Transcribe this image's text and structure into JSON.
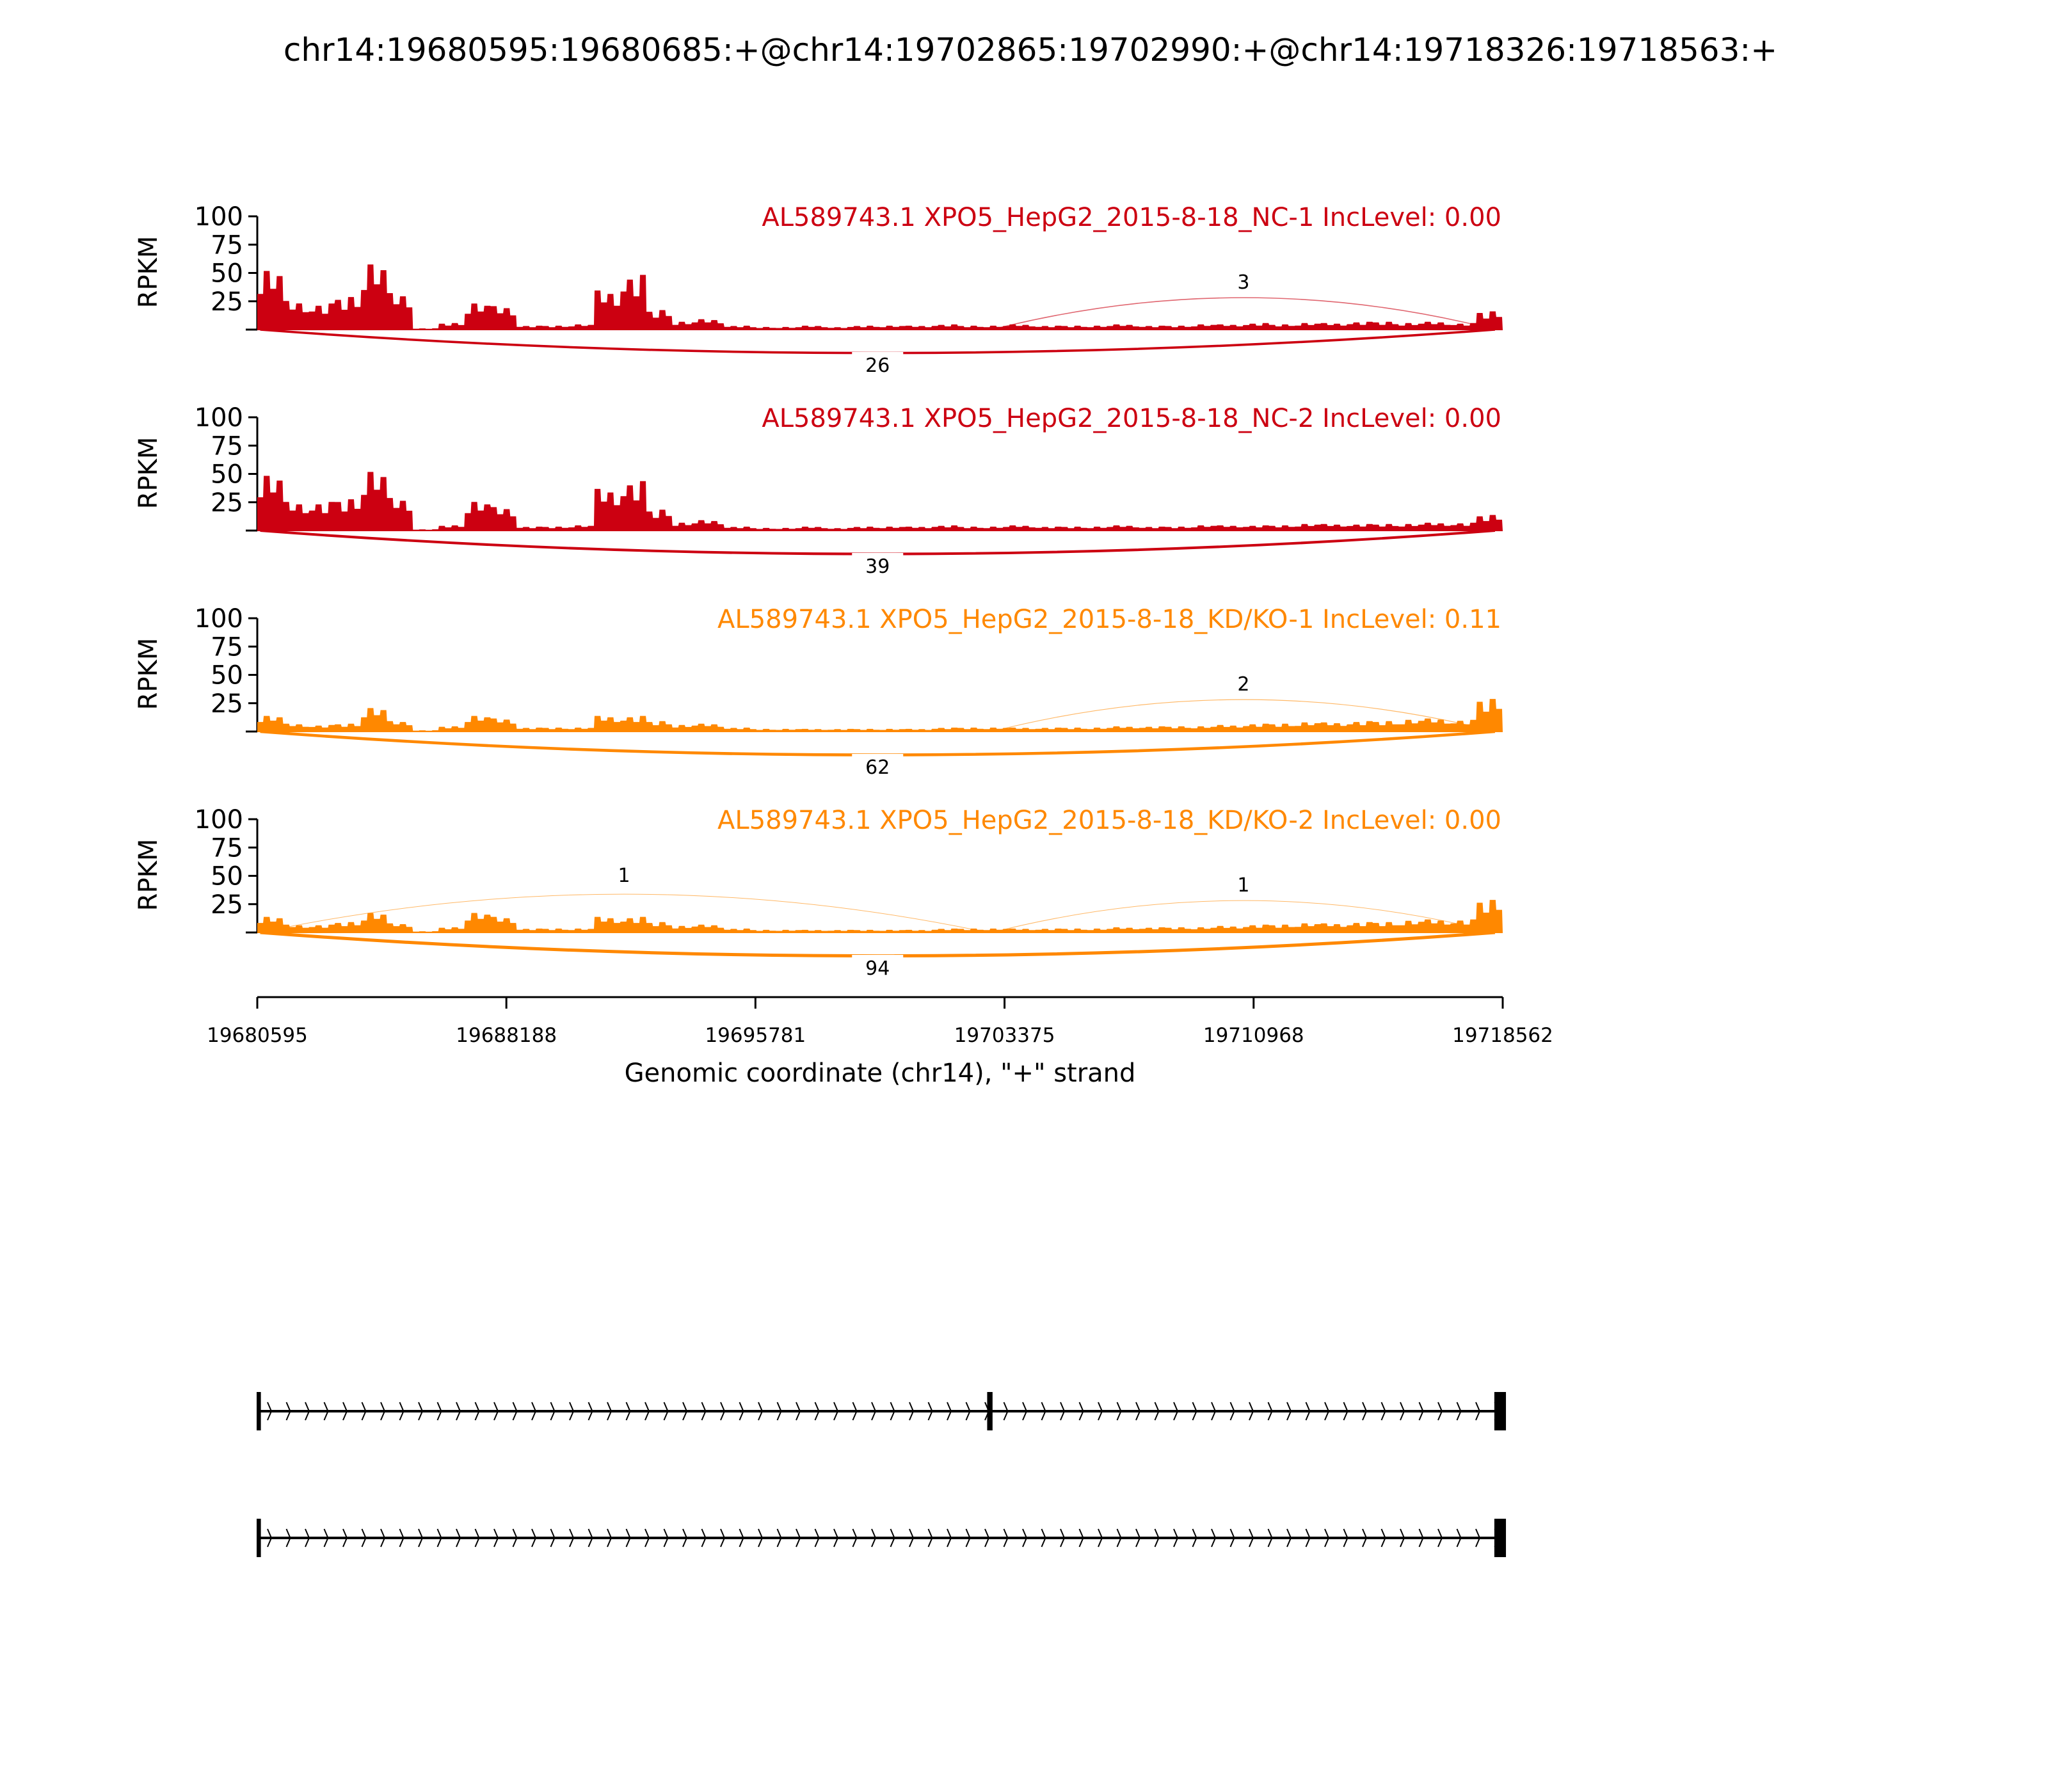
{
  "chart_data": {
    "type": "area",
    "title": "chr14:19680595:19680685:+@chr14:19702865:19702990:+@chr14:19718326:19718563:+",
    "xlabel": "Genomic coordinate (chr14), \"+\" strand",
    "ylabel": "RPKM",
    "xlim": [
      19680595,
      19718562
    ],
    "ylim": [
      0,
      100
    ],
    "x_ticks": [
      "19680595",
      "19688188",
      "19695781",
      "19703375",
      "19710968",
      "19718562"
    ],
    "y_ticks": [
      "25",
      "50",
      "75",
      "100"
    ],
    "tracks": [
      {
        "label": "AL589743.1 XPO5_HepG2_2015-8-18_NC-1 IncLevel: 0.00",
        "color": "#cc0011",
        "coverage": [
          45,
          22,
          20,
          25,
          50,
          28,
          1,
          5,
          20,
          18,
          3,
          3,
          4,
          30,
          42,
          15,
          6,
          8,
          3,
          2,
          2,
          3,
          2,
          3,
          3,
          3,
          4,
          3,
          3,
          4,
          3,
          3,
          3,
          4,
          3,
          3,
          4,
          4,
          5,
          4,
          5,
          5,
          6,
          6,
          5,
          6,
          5,
          14
        ],
        "junctions": [
          {
            "start": 19702990,
            "end": 19718326,
            "count": "3",
            "side": "above"
          },
          {
            "start": 19680685,
            "end": 19718326,
            "count": "26",
            "side": "below"
          }
        ]
      },
      {
        "label": "AL589743.1 XPO5_HepG2_2015-8-18_NC-2 IncLevel: 0.00",
        "color": "#cc0011",
        "coverage": [
          42,
          22,
          22,
          24,
          45,
          25,
          1,
          4,
          22,
          18,
          3,
          3,
          4,
          32,
          38,
          16,
          6,
          8,
          3,
          2,
          2,
          3,
          2,
          3,
          3,
          3,
          4,
          3,
          3,
          4,
          3,
          3,
          3,
          4,
          3,
          3,
          4,
          4,
          4,
          4,
          5,
          5,
          5,
          5,
          5,
          6,
          6,
          12
        ],
        "junctions": [
          {
            "start": 19680685,
            "end": 19718326,
            "count": "39",
            "side": "below"
          }
        ]
      },
      {
        "label": "AL589743.1 XPO5_HepG2_2015-8-18_KD/KO-1 IncLevel: 0.11",
        "color": "#ff8800",
        "coverage": [
          12,
          6,
          5,
          6,
          18,
          8,
          1,
          4,
          12,
          10,
          3,
          3,
          3,
          12,
          12,
          8,
          5,
          6,
          3,
          2,
          2,
          2,
          2,
          2,
          2,
          2,
          3,
          3,
          3,
          3,
          3,
          3,
          3,
          4,
          4,
          4,
          4,
          5,
          6,
          6,
          7,
          7,
          8,
          8,
          9,
          10,
          9,
          25
        ],
        "junctions": [
          {
            "start": 19702990,
            "end": 19718326,
            "count": "2",
            "side": "above"
          },
          {
            "start": 19680685,
            "end": 19718326,
            "count": "62",
            "side": "below"
          }
        ]
      },
      {
        "label": "AL589743.1 XPO5_HepG2_2015-8-18_KD/KO-2 IncLevel: 0.00",
        "color": "#ff8800",
        "coverage": [
          12,
          6,
          6,
          8,
          15,
          7,
          1,
          4,
          15,
          12,
          3,
          3,
          3,
          12,
          12,
          8,
          5,
          6,
          3,
          2,
          2,
          2,
          2,
          2,
          2,
          2,
          3,
          3,
          3,
          3,
          3,
          3,
          3,
          4,
          4,
          4,
          4,
          5,
          6,
          6,
          7,
          7,
          8,
          8,
          9,
          10,
          10,
          25
        ],
        "junctions": [
          {
            "start": 19680685,
            "end": 19702865,
            "count": "1",
            "side": "above"
          },
          {
            "start": 19702990,
            "end": 19718326,
            "count": "1",
            "side": "above"
          },
          {
            "start": 19680685,
            "end": 19718326,
            "count": "94",
            "side": "below"
          }
        ]
      }
    ],
    "transcripts": [
      {
        "exons": [
          [
            19680595,
            19680685
          ],
          [
            19702865,
            19702990
          ],
          [
            19718326,
            19718563
          ]
        ]
      },
      {
        "exons": [
          [
            19680595,
            19680685
          ],
          [
            19718326,
            19718563
          ]
        ]
      }
    ]
  }
}
